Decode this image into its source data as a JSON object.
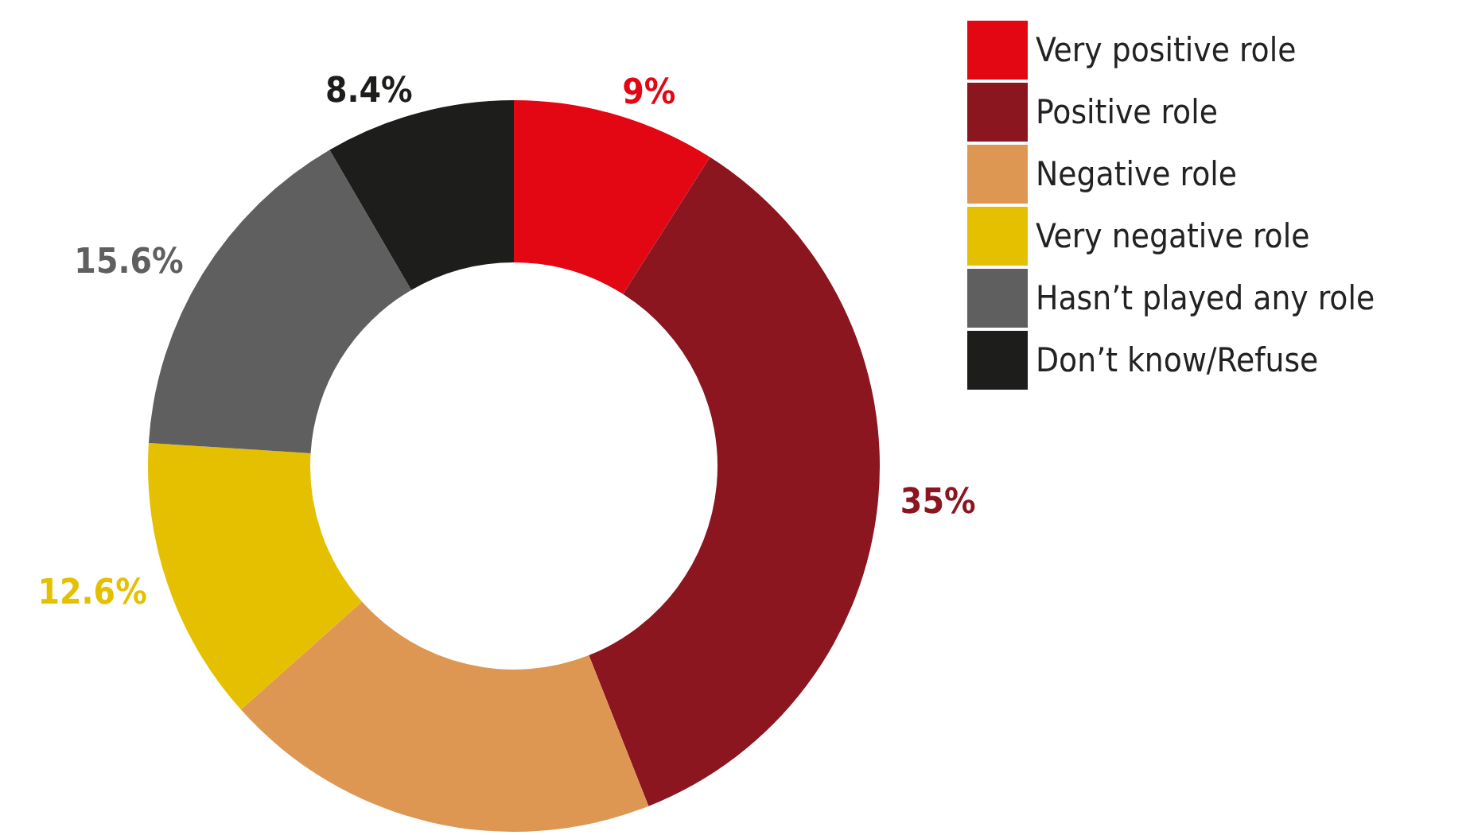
{
  "chart_data": {
    "type": "donut",
    "categories": [
      "Very positive role",
      "Positive role",
      "Negative role",
      "Very negative role",
      "Hasn’t played any role",
      "Don’t know/Refuse"
    ],
    "values": [
      9,
      35,
      19.4,
      12.6,
      15.6,
      8.4
    ],
    "value_labels": [
      "9%",
      "35%",
      null,
      "12.6%",
      "15.6%",
      "8.4%"
    ],
    "colors": [
      "#e30613",
      "#8b1620",
      "#dd9752",
      "#e5c000",
      "#5f5f5f",
      "#1d1d1b"
    ],
    "legend": "top right"
  }
}
